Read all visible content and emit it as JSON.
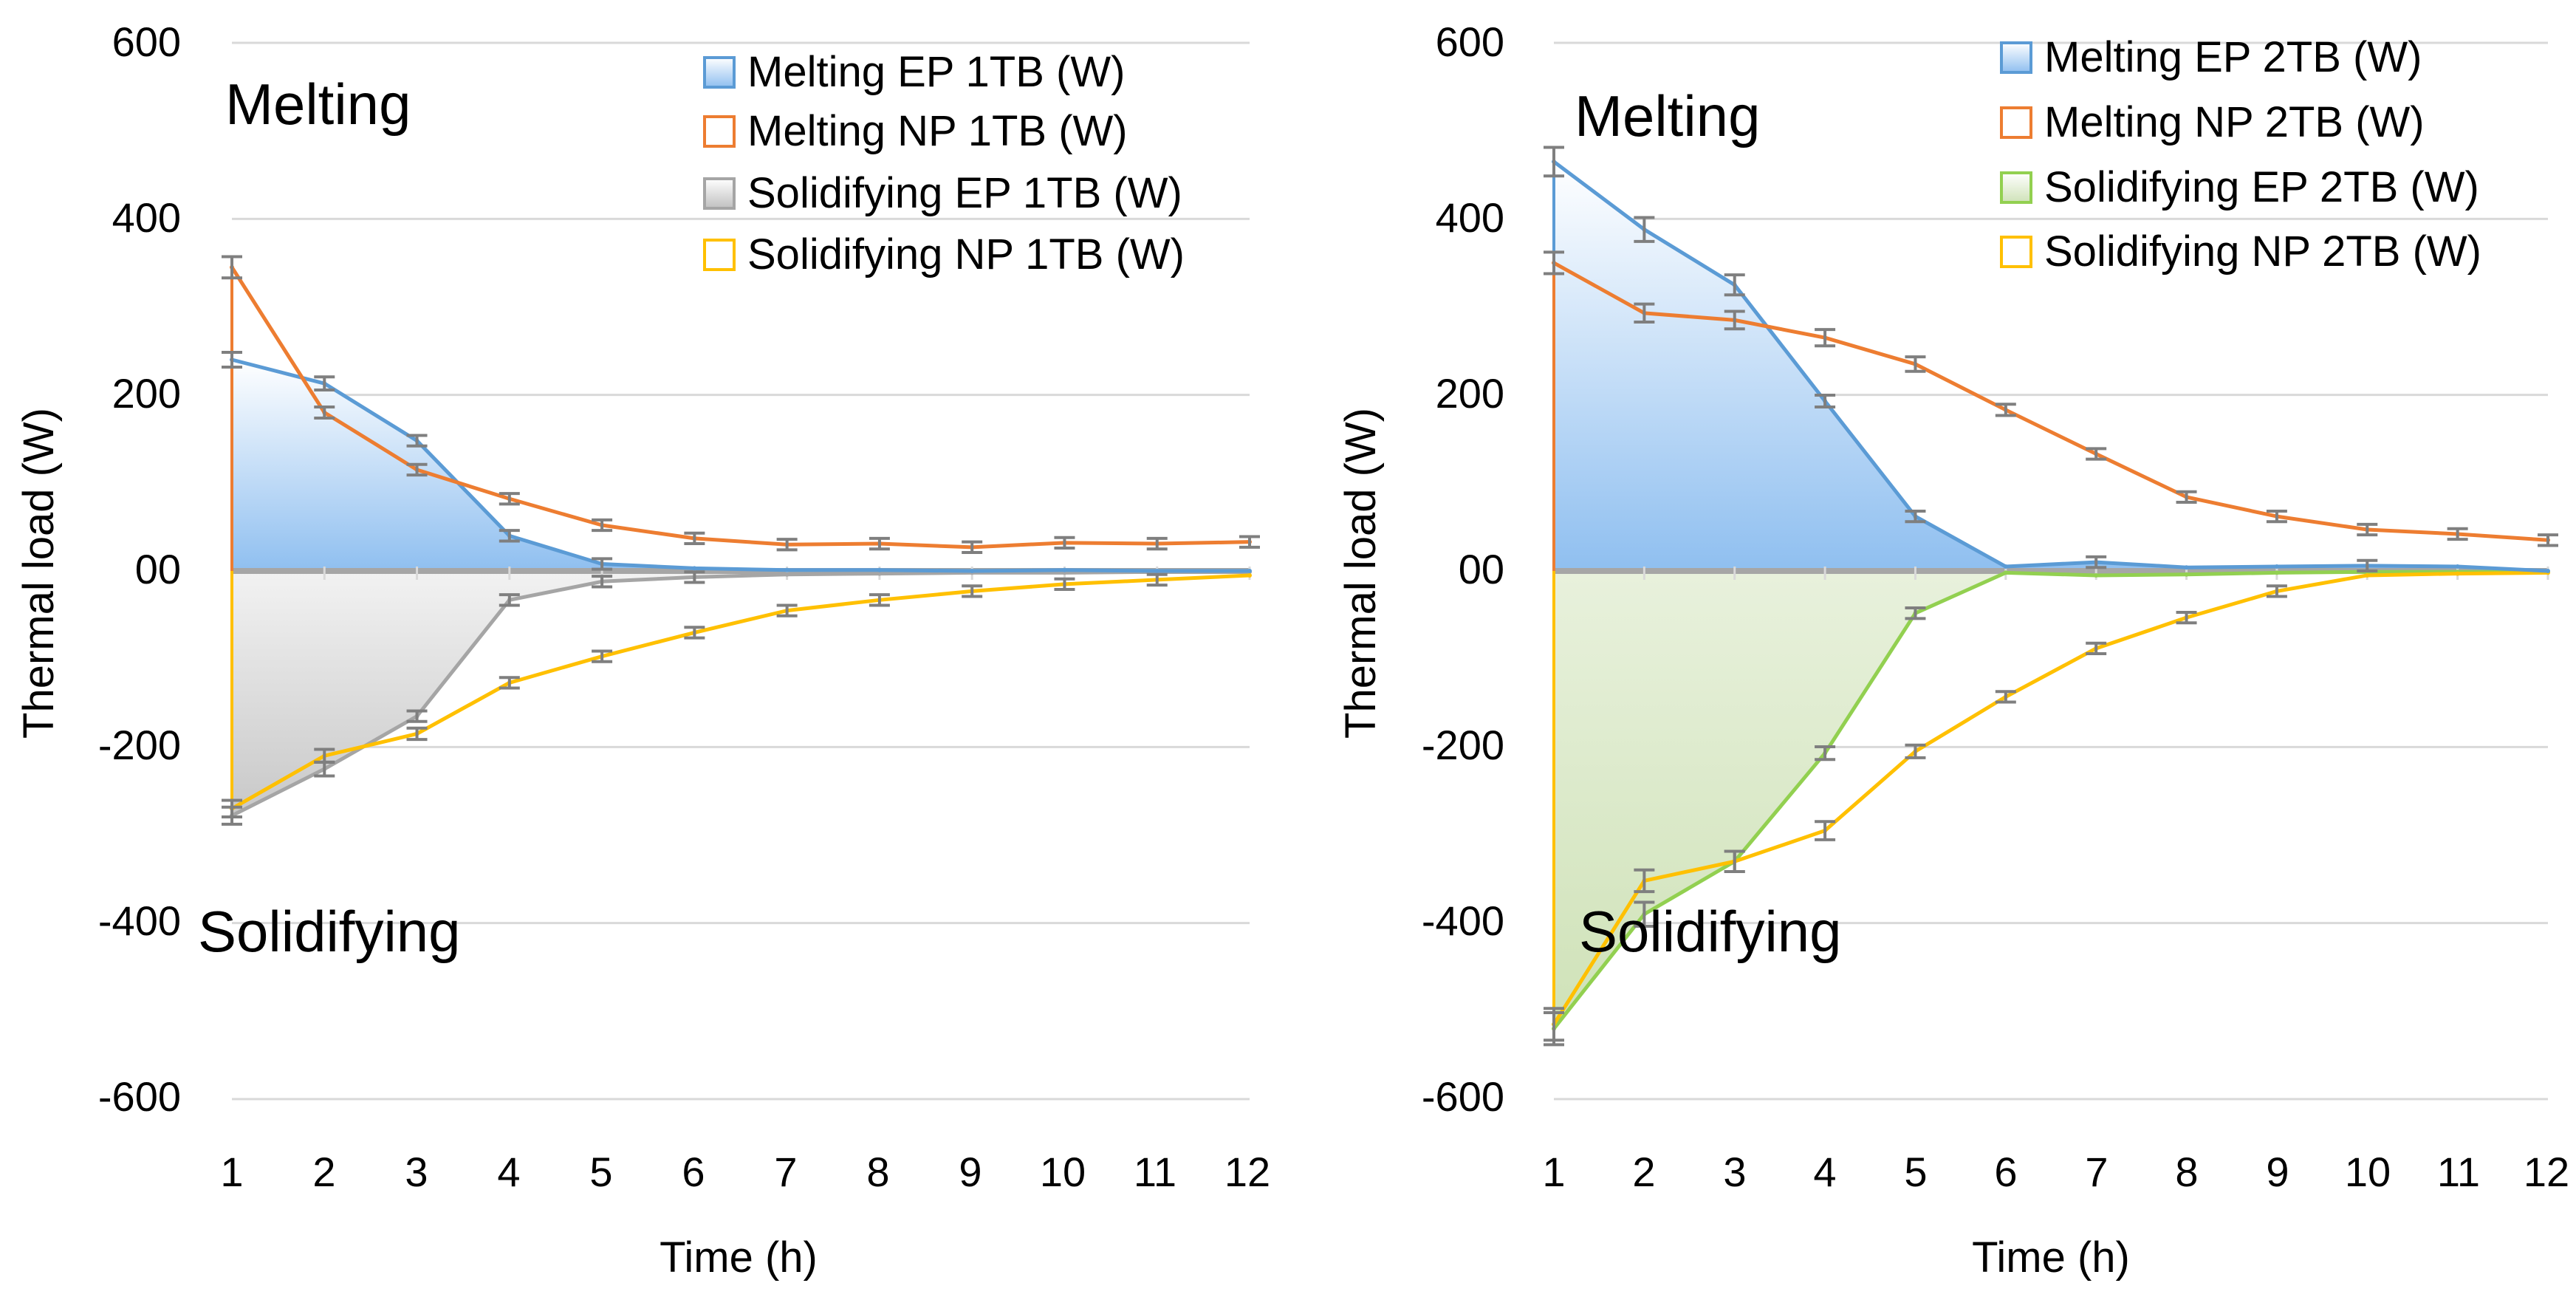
{
  "chart_data": [
    {
      "type": "area",
      "xlabel": "Time (h)",
      "ylabel": "Thermal load (W)",
      "ylim": [
        -600,
        600
      ],
      "xlim": [
        1,
        12
      ],
      "y_ticks": [
        "600",
        "400",
        "200",
        "00",
        "-200",
        "-400",
        "-600"
      ],
      "x_ticks": [
        "1",
        "2",
        "3",
        "4",
        "5",
        "6",
        "7",
        "8",
        "9",
        "10",
        "11",
        "12"
      ],
      "grid": true,
      "legend_position": "top-right",
      "annotations": [
        "Melting",
        "Solidifying"
      ],
      "x": [
        1,
        2,
        3,
        4,
        5,
        6,
        7,
        8,
        9,
        10,
        11,
        12
      ],
      "series": [
        {
          "name": "Melting EP 1TB (W)",
          "line_color": "#5b9bd5",
          "fill": "blue",
          "values": [
            240,
            213,
            148,
            40,
            8,
            3,
            1,
            1,
            0,
            1,
            0,
            0
          ]
        },
        {
          "name": "Melting NP 1TB (W)",
          "line_color": "#ed7d31",
          "fill": "none",
          "values": [
            345,
            180,
            115,
            82,
            52,
            37,
            30,
            31,
            27,
            32,
            31,
            33
          ]
        },
        {
          "name": "Solidifying EP 1TB (W)",
          "line_color": "#a5a5a5",
          "fill": "gray",
          "values": [
            -278,
            -225,
            -165,
            -33,
            -12,
            -7,
            -4,
            -3,
            -2,
            -2,
            -1,
            -1
          ]
        },
        {
          "name": "Solidifying NP 1TB (W)",
          "line_color": "#ffc000",
          "fill": "none",
          "values": [
            -270,
            -210,
            -185,
            -127,
            -97,
            -70,
            -45,
            -33,
            -23,
            -15,
            -10,
            -5
          ]
        }
      ]
    },
    {
      "type": "area",
      "xlabel": "Time (h)",
      "ylabel": "Thermal load (W)",
      "ylim": [
        -600,
        600
      ],
      "xlim": [
        1,
        12
      ],
      "y_ticks": [
        "600",
        "400",
        "200",
        "00",
        "-200",
        "-400",
        "-600"
      ],
      "x_ticks": [
        "1",
        "2",
        "3",
        "4",
        "5",
        "6",
        "7",
        "8",
        "9",
        "10",
        "11",
        "12"
      ],
      "grid": true,
      "legend_position": "top-right",
      "annotations": [
        "Melting",
        "Solidifying"
      ],
      "x": [
        1,
        2,
        3,
        4,
        5,
        6,
        7,
        8,
        9,
        10,
        11,
        12
      ],
      "series": [
        {
          "name": "Melting EP 2TB (W)",
          "line_color": "#5b9bd5",
          "fill": "blue",
          "values": [
            465,
            388,
            325,
            193,
            62,
            5,
            10,
            4,
            5,
            6,
            5,
            0
          ]
        },
        {
          "name": "Melting NP 2TB (W)",
          "line_color": "#ed7d31",
          "fill": "none",
          "values": [
            350,
            293,
            285,
            265,
            235,
            183,
            133,
            84,
            62,
            47,
            42,
            35
          ]
        },
        {
          "name": "Solidifying EP 2TB (W)",
          "line_color": "#92d050",
          "fill": "green",
          "values": [
            -520,
            -390,
            -330,
            -207,
            -48,
            -2,
            -5,
            -4,
            -2,
            -1,
            -1,
            -1
          ]
        },
        {
          "name": "Solidifying NP 2TB (W)",
          "line_color": "#ffc000",
          "fill": "none",
          "values": [
            -515,
            -352,
            -330,
            -295,
            -205,
            -143,
            -88,
            -53,
            -23,
            -5,
            -3,
            -2
          ]
        }
      ]
    }
  ]
}
